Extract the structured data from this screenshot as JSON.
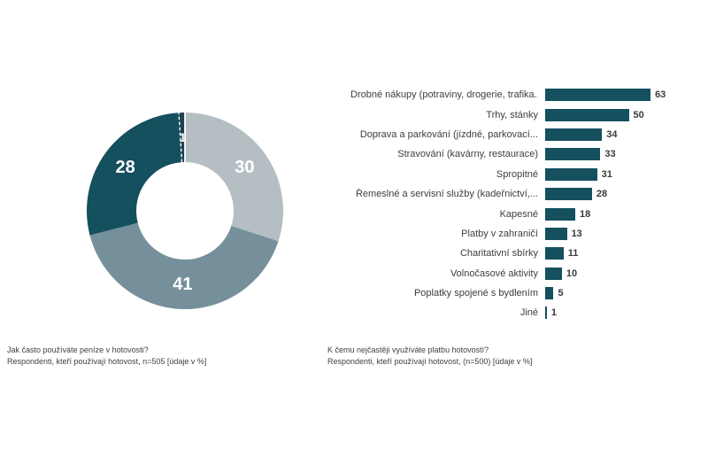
{
  "chart_data": [
    {
      "type": "pie",
      "subtype": "donut",
      "values": [
        30,
        41,
        28,
        1
      ],
      "data_labels": [
        "30",
        "41",
        "28",
        "1"
      ],
      "slice_colors": [
        "#B4BEC3",
        "#75909B",
        "#14505E",
        "#1E4150"
      ],
      "label_color": "#FFFFFF",
      "start_angle_deg": 0,
      "direction": "clockwise",
      "legend": "none",
      "title": "Jak často používáte peníze v hotovosti?",
      "subtitle": "Respondenti, kteří používají hotovost, n=505 [údaje v %]"
    },
    {
      "type": "bar",
      "orientation": "horizontal",
      "categories": [
        "Drobné nákupy (potraviny, drogerie, trafika...",
        "Trhy, stánky",
        "Doprava a parkování (jízdné, parkovací...",
        "Stravování (kavárny, restaurace)",
        "Spropitné",
        "Řemeslné a servisní služby (kadeřnictví,...",
        "Kapesné",
        "Platby v zahraničí",
        "Charitativní sbírky",
        "Volnočasové aktivity",
        "Poplatky spojené s bydlením",
        "Jiné"
      ],
      "values": [
        63,
        50,
        34,
        33,
        31,
        28,
        18,
        13,
        11,
        10,
        5,
        1
      ],
      "bar_color": "#14505E",
      "value_label_color": "#3A3A3A",
      "grid": false,
      "data_labels": true,
      "axes": "none",
      "title": "K čemu nejčastěji využíváte platbu hotovostí?",
      "subtitle": "Respondenti, kteří používají hotovost, (n=500) [údaje v %]"
    }
  ]
}
